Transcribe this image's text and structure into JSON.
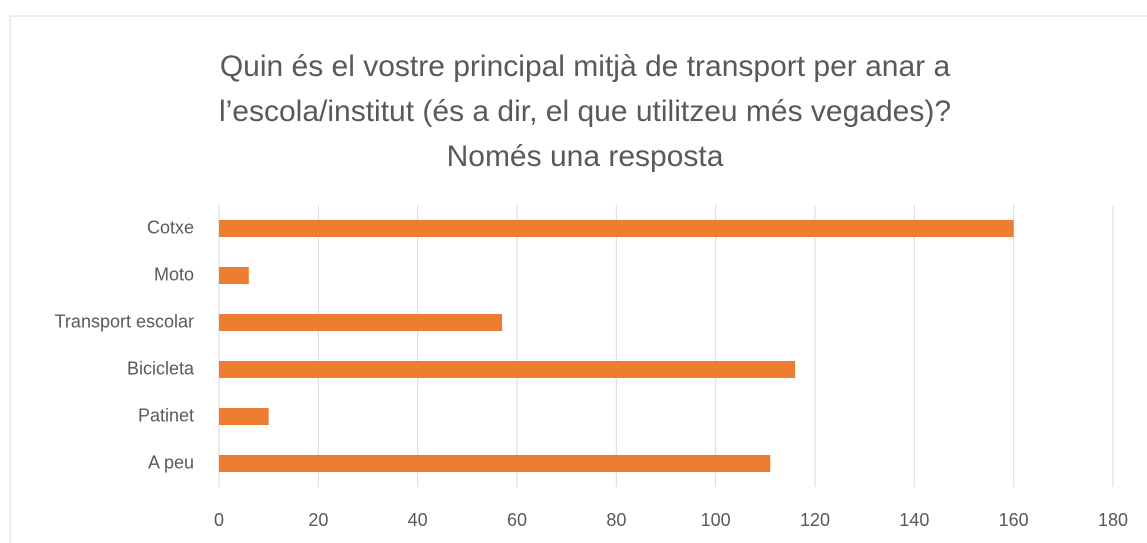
{
  "chart_data": {
    "type": "bar",
    "orientation": "horizontal",
    "title": [
      "Quin és el vostre principal mitjà de transport per anar a",
      "l’escola/institut (és a dir, el que utilitzeu més vegades)?",
      "Només una resposta"
    ],
    "categories": [
      "Cotxe",
      "Moto",
      "Transport escolar",
      "Bicicleta",
      "Patinet",
      "A peu"
    ],
    "values": [
      160,
      6,
      57,
      116,
      10,
      111
    ],
    "color": "#ed7d31",
    "xlim": [
      0,
      180
    ],
    "xticks": [
      0,
      20,
      40,
      60,
      80,
      100,
      120,
      140,
      160,
      180
    ],
    "grid": true
  }
}
